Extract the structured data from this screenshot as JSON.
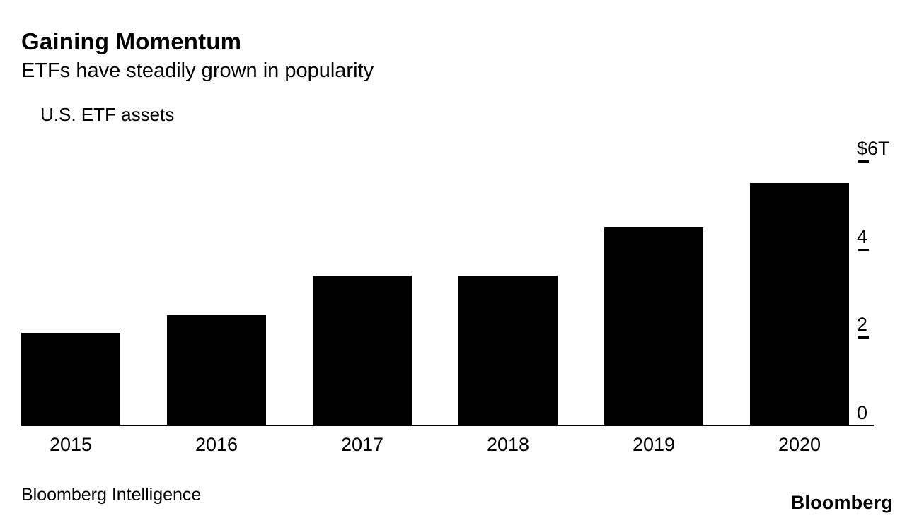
{
  "chart_data": {
    "type": "bar",
    "title": "Gaining Momentum",
    "subtitle": "ETFs have steadily grown in popularity",
    "legend": "U.S. ETF assets",
    "categories": [
      "2015",
      "2016",
      "2017",
      "2018",
      "2019",
      "2020"
    ],
    "values": [
      2.1,
      2.5,
      3.4,
      3.4,
      4.5,
      5.5
    ],
    "ylim": [
      0,
      6
    ],
    "yticks": [
      {
        "value": 6,
        "label": "$6T"
      },
      {
        "value": 4,
        "label": "4"
      },
      {
        "value": 2,
        "label": "2"
      },
      {
        "value": 0,
        "label": "0"
      }
    ],
    "bar_color": "#000000",
    "grid": false,
    "legend_position": "top-left",
    "yaxis_side": "right",
    "xlabel": "",
    "ylabel": ""
  },
  "footer": {
    "source": "Bloomberg Intelligence",
    "logo": "Bloomberg"
  }
}
